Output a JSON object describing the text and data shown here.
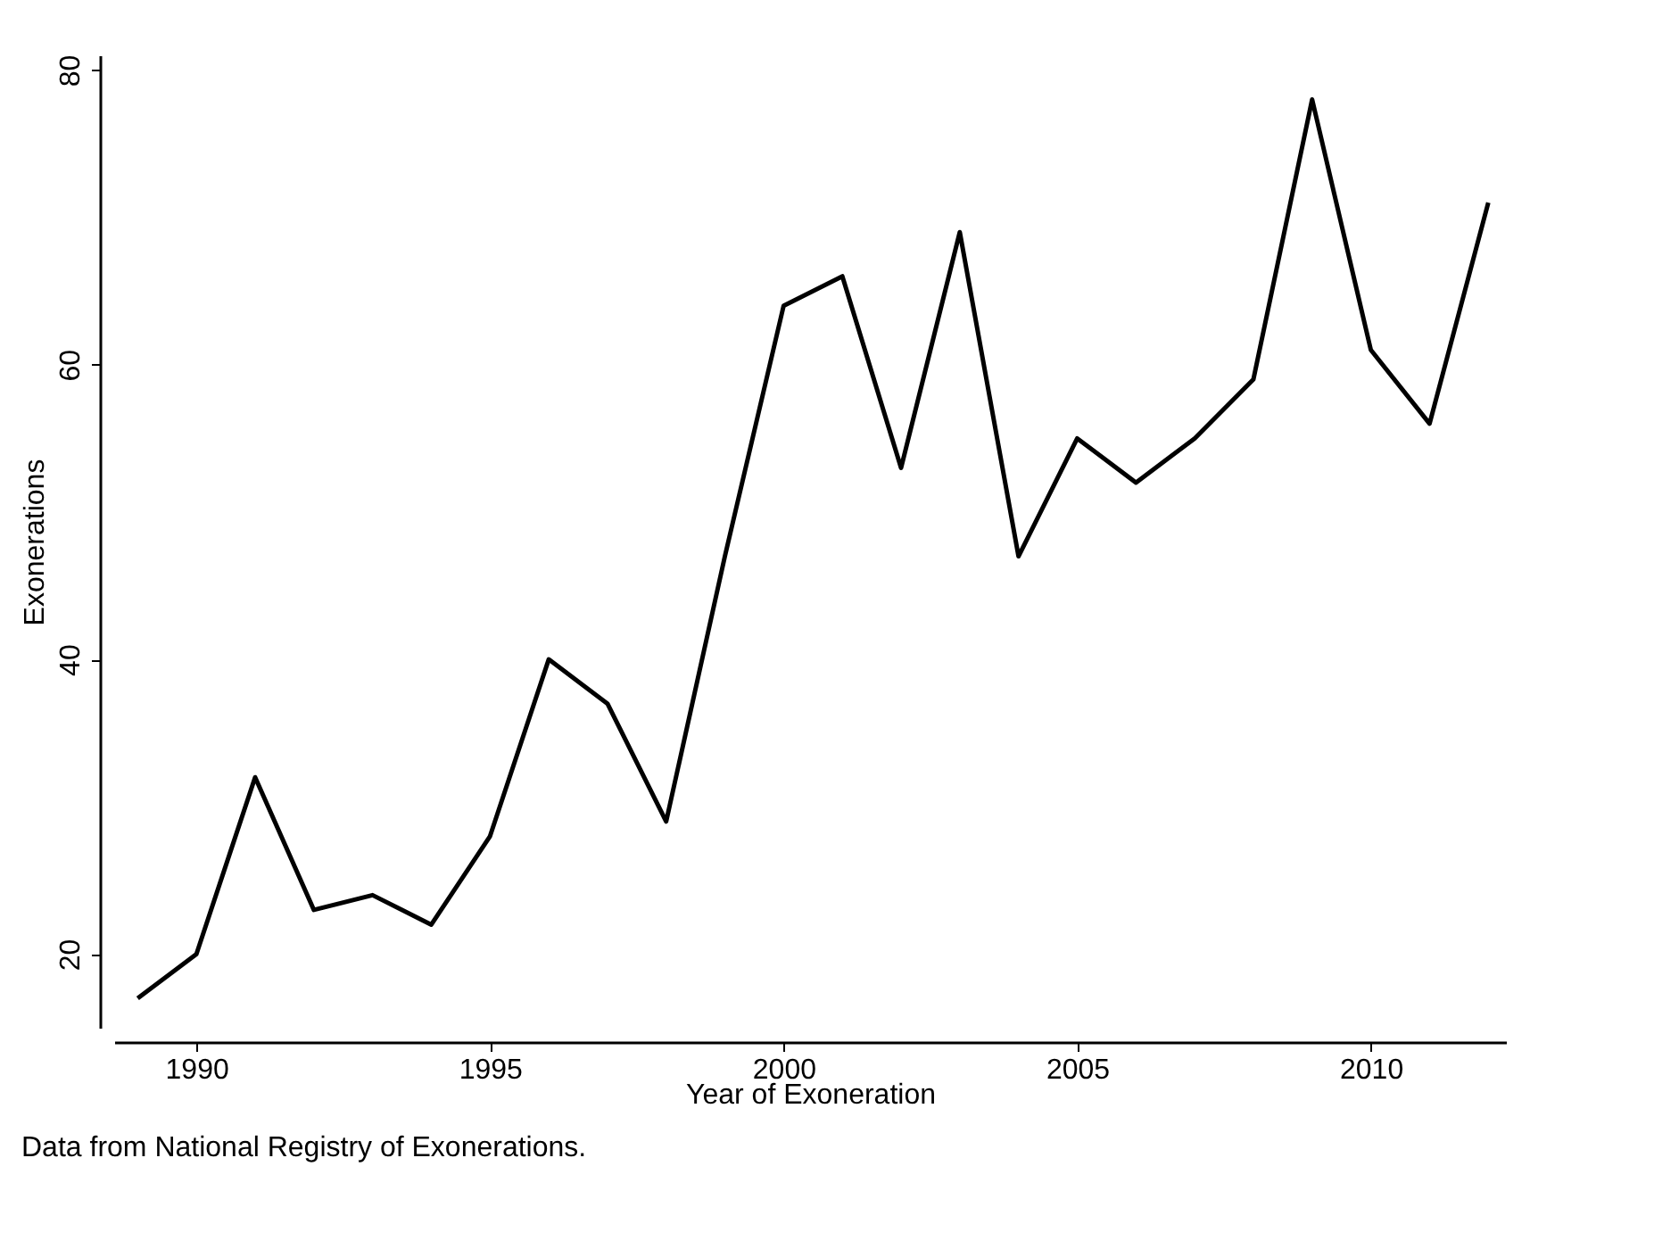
{
  "chart_data": {
    "type": "line",
    "xlabel": "Year of Exoneration",
    "ylabel": "Exonerations",
    "x": [
      1989,
      1990,
      1991,
      1992,
      1993,
      1994,
      1995,
      1996,
      1997,
      1998,
      1999,
      2000,
      2001,
      2002,
      2003,
      2004,
      2005,
      2006,
      2007,
      2008,
      2009,
      2010,
      2011,
      2012
    ],
    "series": [
      {
        "color": "#000000",
        "values": [
          17,
          20,
          32,
          23,
          24,
          22,
          28,
          40,
          37,
          29,
          47,
          64,
          66,
          53,
          69,
          47,
          55,
          52,
          55,
          59,
          78,
          61,
          56,
          71
        ]
      }
    ],
    "xlim": [
      1988.6,
      2012.3
    ],
    "xticks": [
      1990,
      1995,
      2000,
      2005,
      2010
    ],
    "ylim": [
      15,
      81
    ],
    "yticks": [
      20,
      40,
      60,
      80
    ],
    "grid": false,
    "line_style": "solid",
    "marker": "none",
    "annotations": [
      "Data from National Registry of Exonerations."
    ]
  }
}
